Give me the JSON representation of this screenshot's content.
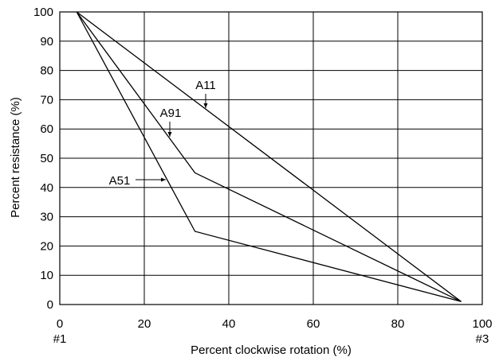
{
  "chart_data": {
    "type": "line",
    "title": "",
    "xlabel": "Percent clockwise rotation (%)",
    "ylabel": "Percent resistance (%)",
    "xlim": [
      0,
      100
    ],
    "ylim": [
      0,
      100
    ],
    "xticks": [
      0,
      20,
      40,
      60,
      80,
      100
    ],
    "yticks": [
      0,
      10,
      20,
      30,
      40,
      50,
      60,
      70,
      80,
      90,
      100
    ],
    "x_end_labels": {
      "left": "#1",
      "right": "#3"
    },
    "grid": true,
    "line_color": "#000000",
    "series": [
      {
        "name": "A11",
        "x": [
          4,
          95
        ],
        "y": [
          100,
          1
        ]
      },
      {
        "name": "A91",
        "x": [
          4,
          32,
          95
        ],
        "y": [
          100,
          45,
          1
        ]
      },
      {
        "name": "A51",
        "x": [
          4,
          32,
          95
        ],
        "y": [
          100,
          25,
          1
        ]
      }
    ]
  }
}
